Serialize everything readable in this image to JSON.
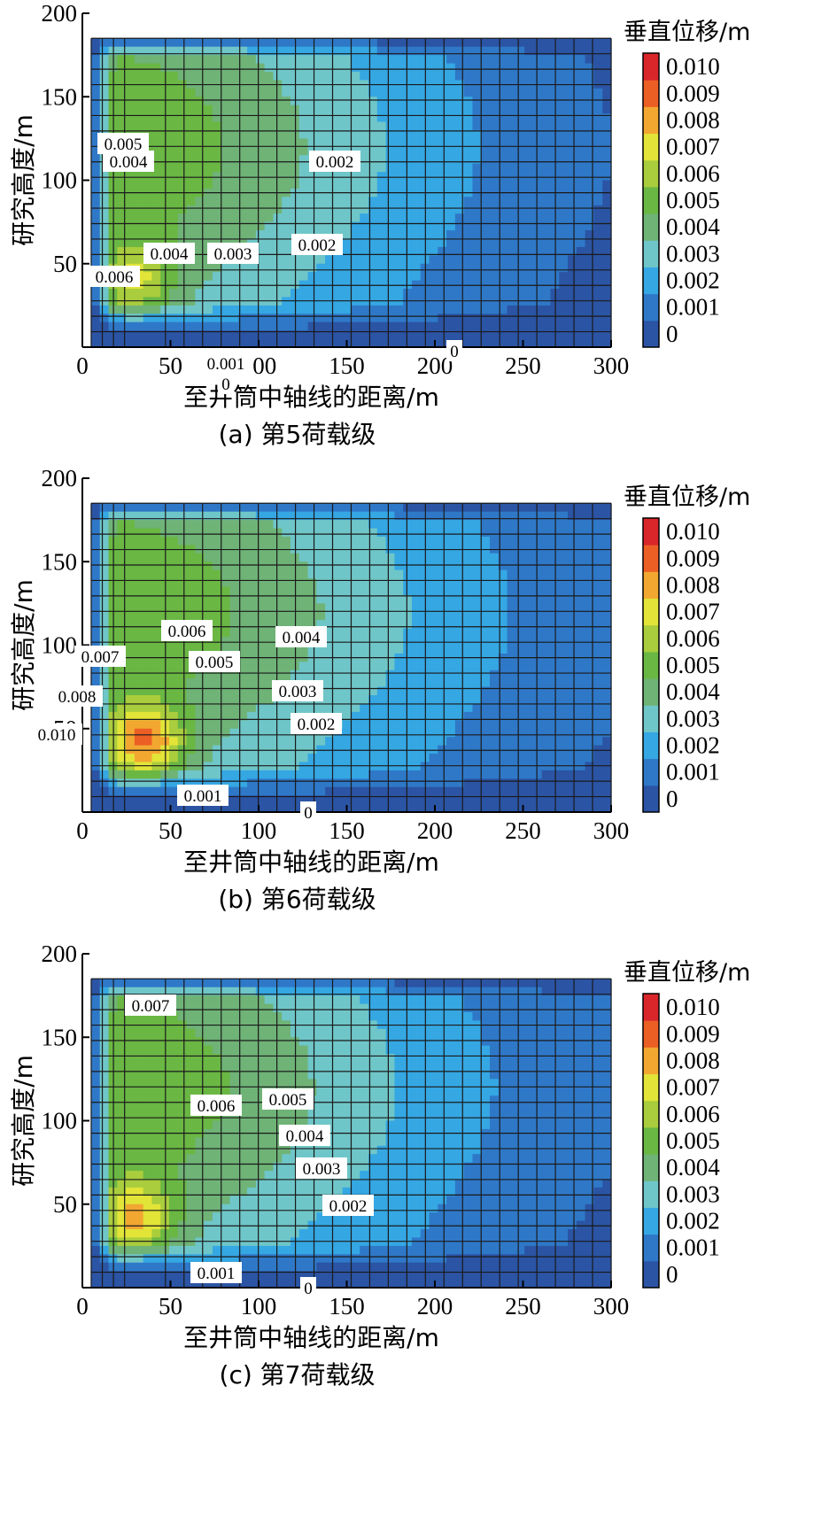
{
  "figure": {
    "xlabel": "至井筒中轴线的距离/m",
    "ylabel": "研究高度/m",
    "colorbar_title": "垂直位移/m",
    "colorbar_levels": [
      "0",
      "0.001",
      "0.002",
      "0.003",
      "0.004",
      "0.005",
      "0.006",
      "0.007",
      "0.008",
      "0.009",
      "0.010"
    ],
    "colorbar_colors": [
      "#2b54a4",
      "#2f78c8",
      "#35a7e3",
      "#6fc6c8",
      "#6fb377",
      "#6ab744",
      "#a9cd3c",
      "#e2e438",
      "#f2a731",
      "#ec5f24",
      "#d9262b"
    ],
    "x_ticks": [
      "0",
      "50",
      "100",
      "150",
      "200",
      "250",
      "300"
    ],
    "y_ticks": [
      "200",
      "150",
      "100",
      "50"
    ]
  },
  "chart_data": [
    {
      "type": "heatmap",
      "caption": "(a)  第5荷载级",
      "xlim": [
        0,
        300
      ],
      "ylim": [
        0,
        200
      ],
      "x": [
        5,
        300
      ],
      "y": [
        0,
        185
      ],
      "peak": {
        "x": 30,
        "y": 40,
        "value": 0.0085
      },
      "contour_labels": [
        {
          "text": "0.004",
          "x": 145,
          "y": 183
        },
        {
          "text": "0.005",
          "x": 139,
          "y": 163
        },
        {
          "text": "0.002",
          "x": 378,
          "y": 183
        },
        {
          "text": "0.004",
          "x": 191,
          "y": 287
        },
        {
          "text": "0.003",
          "x": 263,
          "y": 287
        },
        {
          "text": "0.002",
          "x": 358,
          "y": 277
        },
        {
          "text": "0.006",
          "x": 129,
          "y": 313
        },
        {
          "text": "0.001",
          "x": 255,
          "y": 411
        },
        {
          "text": "0",
          "x": 513,
          "y": 397
        },
        {
          "text": "0",
          "x": 255,
          "y": 434
        }
      ]
    },
    {
      "type": "heatmap",
      "caption": "(b)  第6荷载级",
      "xlim": [
        0,
        300
      ],
      "ylim": [
        0,
        200
      ],
      "x": [
        5,
        300
      ],
      "y": [
        0,
        185
      ],
      "peak": {
        "x": 35,
        "y": 42,
        "value": 0.0105
      },
      "contour_labels": [
        {
          "text": "0.006",
          "x": 211,
          "y": 188
        },
        {
          "text": "0.005",
          "x": 242,
          "y": 223
        },
        {
          "text": "0.004",
          "x": 340,
          "y": 195
        },
        {
          "text": "0.003",
          "x": 336,
          "y": 256
        },
        {
          "text": "0.002",
          "x": 357,
          "y": 293
        },
        {
          "text": "0.007",
          "x": 113,
          "y": 217
        },
        {
          "text": "0.008",
          "x": 87,
          "y": 262
        },
        {
          "text": "0.010",
          "x": 64,
          "y": 305
        },
        {
          "text": "0.001",
          "x": 229,
          "y": 374
        },
        {
          "text": "0",
          "x": 348,
          "y": 393
        }
      ]
    },
    {
      "type": "heatmap",
      "caption": "(c)  第7荷载级",
      "xlim": [
        0,
        300
      ],
      "ylim": [
        0,
        200
      ],
      "x": [
        5,
        300
      ],
      "y": [
        0,
        185
      ],
      "peak": {
        "x": 30,
        "y": 42,
        "value": 0.0095
      },
      "contour_labels": [
        {
          "text": "0.007",
          "x": 170,
          "y": 74
        },
        {
          "text": "0.006",
          "x": 244,
          "y": 187
        },
        {
          "text": "0.005",
          "x": 325,
          "y": 180
        },
        {
          "text": "0.004",
          "x": 344,
          "y": 221
        },
        {
          "text": "0.003",
          "x": 363,
          "y": 258
        },
        {
          "text": "0.002",
          "x": 393,
          "y": 300
        },
        {
          "text": "0.001",
          "x": 244,
          "y": 376
        },
        {
          "text": "0",
          "x": 348,
          "y": 393
        }
      ]
    }
  ]
}
